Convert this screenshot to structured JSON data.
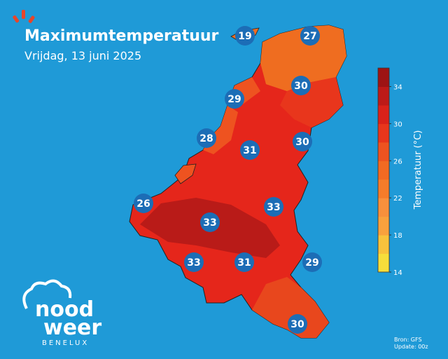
{
  "header": {
    "title": "Maximumtemperatuur",
    "subtitle": "Vrijdag, 13 juni 2025"
  },
  "cities": [
    {
      "value": 19
    },
    {
      "value": 27
    },
    {
      "value": 30
    },
    {
      "value": 29
    },
    {
      "value": 28
    },
    {
      "value": 31
    },
    {
      "value": 30
    },
    {
      "value": 26
    },
    {
      "value": 33
    },
    {
      "value": 33
    },
    {
      "value": 33
    },
    {
      "value": 31
    },
    {
      "value": 29
    },
    {
      "value": 30
    }
  ],
  "colorbar": {
    "label": "Temperatuur (°C)",
    "lim": [
      14,
      36
    ],
    "ticks": [
      14,
      18,
      22,
      26,
      30,
      34
    ],
    "colors": [
      "#f6dd3b",
      "#f8c23c",
      "#f9a13d",
      "#f8903c",
      "#f57c2a",
      "#f26a22",
      "#ee5320",
      "#e8361c",
      "#d9221a",
      "#bd1a18",
      "#9e1414"
    ]
  },
  "logo": {
    "line1": "nood",
    "line2": "weer",
    "line3": "BENELUX"
  },
  "footer": {
    "source": "Bron: GFS",
    "update": "Update: 00z"
  }
}
